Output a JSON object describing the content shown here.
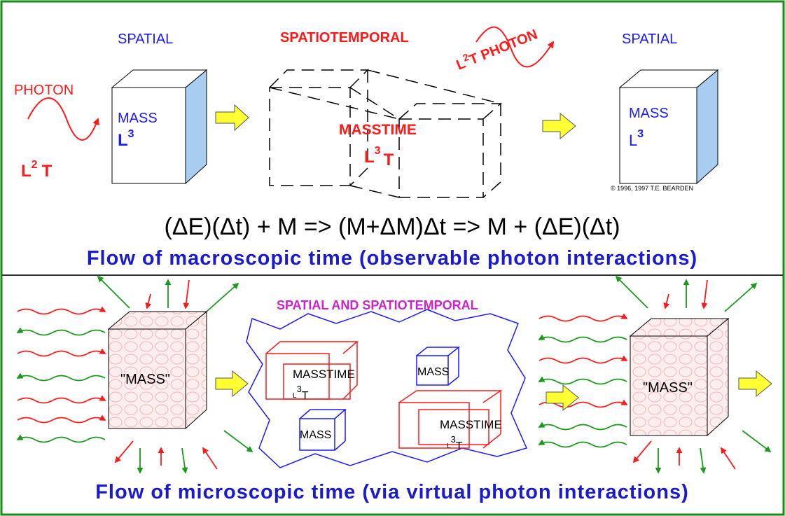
{
  "top": {
    "spatial_left": "SPATIAL",
    "spatiotemporal": "SPATIOTEMPORAL",
    "photon_out": {
      "base": "L",
      "sup": "2",
      "tail": "T PHOTON"
    },
    "spatial_right": "SPATIAL",
    "photon_in": "PHOTON",
    "photon_in_dim": {
      "base": "L",
      "sup": "2",
      "tail": "T"
    },
    "mass_left": {
      "label": "MASS",
      "base": "L",
      "sup": "3"
    },
    "masstime": {
      "label": "MASSTIME",
      "base": "L",
      "sup": "3",
      "tail": "T"
    },
    "mass_right": {
      "label": "MASS",
      "base": "L",
      "sup": "3"
    },
    "copyright": "© 1996, 1997  T.E. BEARDEN",
    "equation": "(ΔE)(Δt) + M => (M+ΔM)Δt => M + (ΔE)(Δt)",
    "caption": "Flow of macroscopic time (observable photon interactions)"
  },
  "bottom": {
    "heading": "SPATIAL AND SPATIOTEMPORAL",
    "mass_left": "\"MASS\"",
    "masstime_a": {
      "label": "MASSTIME",
      "base": "L",
      "sup": "3",
      "tail": "T"
    },
    "mass_a": "MASS",
    "mass_b": "MASS",
    "masstime_b": {
      "label": "MASSTIME",
      "base": "L",
      "sup": "3",
      "tail": "T"
    },
    "mass_right": "\"MASS\"",
    "caption": "Flow of microscopic time (via virtual photon interactions)"
  }
}
